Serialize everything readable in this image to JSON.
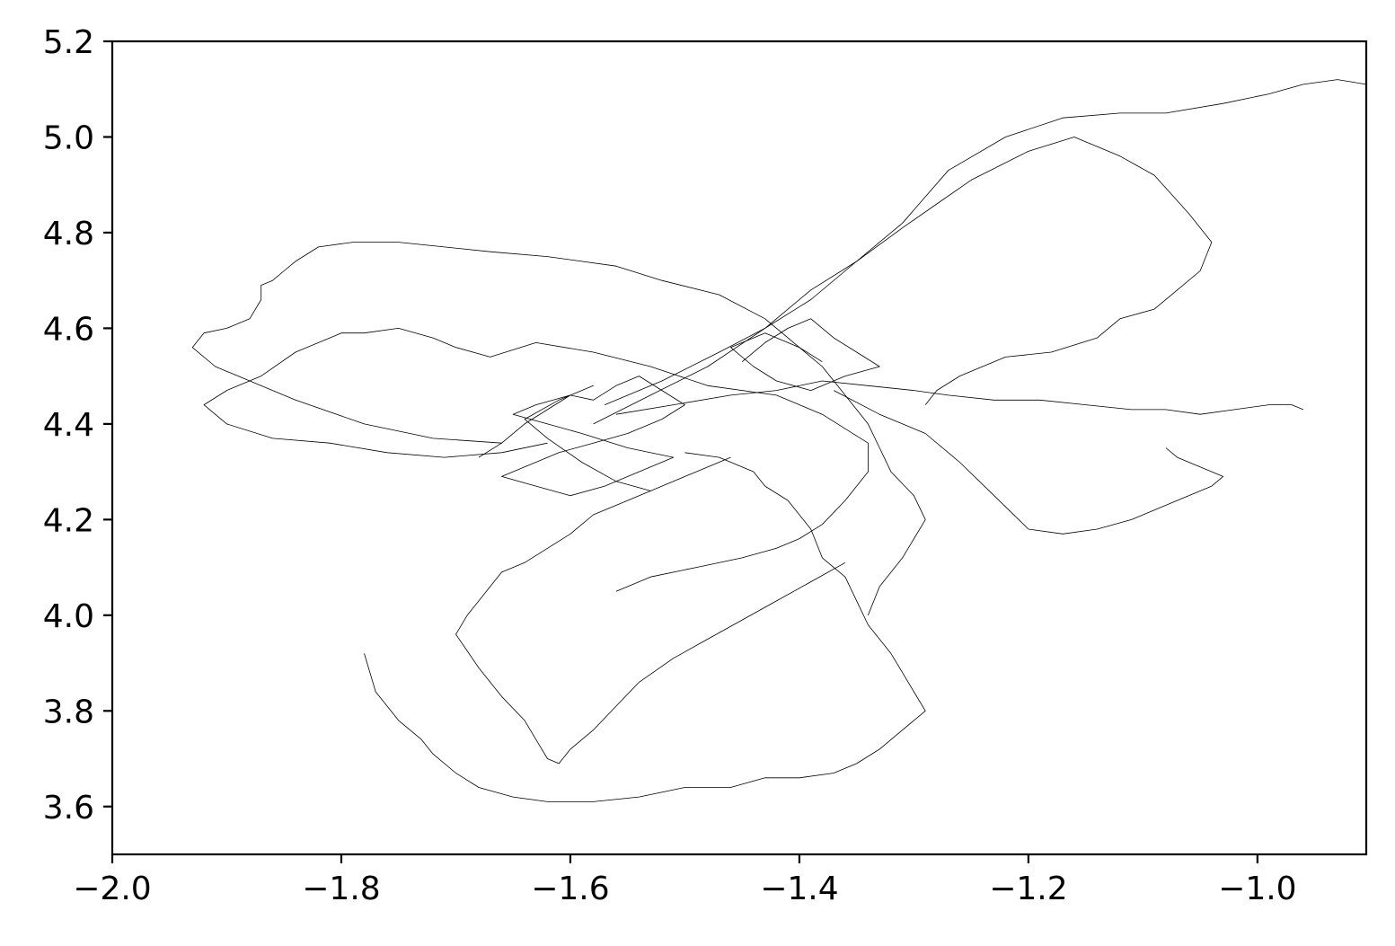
{
  "chart_data": {
    "type": "line",
    "title": "",
    "xlabel": "",
    "ylabel": "",
    "xlim": [
      -2.0,
      -0.905
    ],
    "ylim": [
      3.5,
      5.2
    ],
    "grid": false,
    "x_ticks": [
      -2.0,
      -1.8,
      -1.6,
      -1.4,
      -1.2,
      -1.0
    ],
    "x_tick_labels": [
      "−2.0",
      "−1.8",
      "−1.6",
      "−1.4",
      "−1.2",
      "−1.0"
    ],
    "y_ticks": [
      3.6,
      3.8,
      4.0,
      4.2,
      4.4,
      4.6,
      4.8,
      5.0,
      5.2
    ],
    "y_tick_labels": [
      "3.6",
      "3.8",
      "4.0",
      "4.2",
      "4.4",
      "4.6",
      "4.8",
      "5.0",
      "5.2"
    ],
    "line_color": "#000000",
    "series": [
      {
        "x": [
          -1.57,
          -1.52,
          -1.47,
          -1.43,
          -1.39,
          -1.36,
          -1.31,
          -1.27,
          -1.22,
          -1.17,
          -1.12,
          -1.08,
          -1.03,
          -0.99,
          -0.96,
          -0.93,
          -0.905
        ],
        "y": [
          4.44,
          4.49,
          4.55,
          4.6,
          4.66,
          4.72,
          4.82,
          4.93,
          5.0,
          5.04,
          5.05,
          5.05,
          5.07,
          5.09,
          5.11,
          5.12,
          5.11
        ]
      },
      {
        "x": [
          -1.58,
          -1.53,
          -1.48,
          -1.43,
          -1.39,
          -1.35,
          -1.31,
          -1.28,
          -1.25,
          -1.2,
          -1.16,
          -1.12,
          -1.09,
          -1.06,
          -1.04,
          -1.05,
          -1.07,
          -1.09,
          -1.12,
          -1.14,
          -1.18,
          -1.22,
          -1.26,
          -1.28,
          -1.29
        ],
        "y": [
          4.4,
          4.46,
          4.52,
          4.6,
          4.68,
          4.74,
          4.81,
          4.86,
          4.91,
          4.97,
          5.0,
          4.96,
          4.92,
          4.84,
          4.78,
          4.72,
          4.68,
          4.64,
          4.62,
          4.58,
          4.55,
          4.54,
          4.5,
          4.47,
          4.44
        ]
      },
      {
        "x": [
          -1.56,
          -1.51,
          -1.46,
          -1.42,
          -1.38,
          -1.34,
          -1.3,
          -1.27,
          -1.23,
          -1.19,
          -1.15,
          -1.11,
          -1.08,
          -1.05,
          -1.02,
          -0.99,
          -0.97,
          -0.96
        ],
        "y": [
          4.42,
          4.44,
          4.46,
          4.47,
          4.49,
          4.48,
          4.47,
          4.46,
          4.45,
          4.45,
          4.44,
          4.43,
          4.43,
          4.42,
          4.43,
          4.44,
          4.44,
          4.43
        ]
      },
      {
        "x": [
          -1.37,
          -1.33,
          -1.29,
          -1.26,
          -1.23,
          -1.2,
          -1.17,
          -1.14,
          -1.11,
          -1.08,
          -1.06,
          -1.04,
          -1.03,
          -1.05,
          -1.07,
          -1.08
        ],
        "y": [
          4.47,
          4.42,
          4.38,
          4.32,
          4.25,
          4.18,
          4.17,
          4.18,
          4.2,
          4.23,
          4.25,
          4.27,
          4.29,
          4.31,
          4.33,
          4.35
        ]
      },
      {
        "x": [
          -1.66,
          -1.72,
          -1.78,
          -1.84,
          -1.88,
          -1.91,
          -1.93,
          -1.92,
          -1.9,
          -1.88,
          -1.87,
          -1.87,
          -1.86,
          -1.85,
          -1.84,
          -1.82,
          -1.79,
          -1.75,
          -1.71,
          -1.67,
          -1.62,
          -1.56,
          -1.52,
          -1.47,
          -1.43,
          -1.41,
          -1.38,
          -1.36,
          -1.34,
          -1.33,
          -1.32,
          -1.3,
          -1.29,
          -1.31,
          -1.33,
          -1.34
        ],
        "y": [
          4.36,
          4.37,
          4.4,
          4.45,
          4.49,
          4.52,
          4.56,
          4.59,
          4.6,
          4.62,
          4.66,
          4.69,
          4.7,
          4.72,
          4.74,
          4.77,
          4.78,
          4.78,
          4.77,
          4.76,
          4.75,
          4.73,
          4.7,
          4.67,
          4.62,
          4.58,
          4.52,
          4.46,
          4.4,
          4.35,
          4.3,
          4.25,
          4.2,
          4.12,
          4.06,
          4.0
        ]
      },
      {
        "x": [
          -1.62,
          -1.66,
          -1.71,
          -1.76,
          -1.81,
          -1.86,
          -1.9,
          -1.92,
          -1.9,
          -1.87,
          -1.84,
          -1.81,
          -1.8,
          -1.78,
          -1.75,
          -1.72,
          -1.7,
          -1.67,
          -1.63,
          -1.58,
          -1.53,
          -1.48,
          -1.42,
          -1.38,
          -1.34,
          -1.34,
          -1.36,
          -1.38,
          -1.4,
          -1.42,
          -1.45,
          -1.49,
          -1.53,
          -1.56
        ],
        "y": [
          4.36,
          4.34,
          4.33,
          4.34,
          4.36,
          4.37,
          4.4,
          4.44,
          4.47,
          4.5,
          4.55,
          4.58,
          4.59,
          4.59,
          4.6,
          4.58,
          4.56,
          4.54,
          4.57,
          4.55,
          4.52,
          4.48,
          4.46,
          4.42,
          4.36,
          4.3,
          4.24,
          4.19,
          4.16,
          4.14,
          4.12,
          4.1,
          4.08,
          4.05
        ]
      },
      {
        "x": [
          -1.5,
          -1.47,
          -1.44,
          -1.43,
          -1.41,
          -1.39,
          -1.38,
          -1.36,
          -1.35,
          -1.34,
          -1.32,
          -1.31,
          -1.3,
          -1.29,
          -1.31,
          -1.33,
          -1.35,
          -1.37,
          -1.4,
          -1.43,
          -1.46,
          -1.5,
          -1.54,
          -1.58,
          -1.62,
          -1.65,
          -1.68,
          -1.7,
          -1.72,
          -1.73,
          -1.75,
          -1.77,
          -1.78
        ],
        "y": [
          4.34,
          4.33,
          4.3,
          4.27,
          4.24,
          4.18,
          4.12,
          4.08,
          4.03,
          3.98,
          3.92,
          3.88,
          3.84,
          3.8,
          3.76,
          3.72,
          3.69,
          3.67,
          3.66,
          3.66,
          3.64,
          3.64,
          3.62,
          3.61,
          3.61,
          3.62,
          3.64,
          3.67,
          3.71,
          3.74,
          3.78,
          3.84,
          3.92
        ]
      },
      {
        "x": [
          -1.36,
          -1.39,
          -1.42,
          -1.45,
          -1.48,
          -1.51,
          -1.54,
          -1.56,
          -1.58,
          -1.6,
          -1.61,
          -1.62,
          -1.63,
          -1.64,
          -1.66,
          -1.68,
          -1.7,
          -1.69,
          -1.68,
          -1.67,
          -1.66,
          -1.64,
          -1.62,
          -1.6,
          -1.58,
          -1.55,
          -1.52,
          -1.49,
          -1.46
        ],
        "y": [
          4.11,
          4.07,
          4.03,
          3.99,
          3.95,
          3.91,
          3.86,
          3.81,
          3.76,
          3.72,
          3.69,
          3.7,
          3.74,
          3.78,
          3.83,
          3.89,
          3.96,
          4.0,
          4.03,
          4.06,
          4.09,
          4.11,
          4.14,
          4.17,
          4.21,
          4.24,
          4.27,
          4.3,
          4.33
        ]
      },
      {
        "x": [
          -1.68,
          -1.66,
          -1.64,
          -1.62,
          -1.6,
          -1.58,
          -1.56,
          -1.54,
          -1.52,
          -1.5,
          -1.52,
          -1.55,
          -1.58,
          -1.61,
          -1.64,
          -1.66,
          -1.63,
          -1.6,
          -1.57,
          -1.54,
          -1.51,
          -1.55,
          -1.59,
          -1.62,
          -1.65,
          -1.63,
          -1.6,
          -1.58,
          -1.61,
          -1.64,
          -1.62,
          -1.59,
          -1.56,
          -1.53
        ],
        "y": [
          4.33,
          4.36,
          4.4,
          4.43,
          4.46,
          4.45,
          4.48,
          4.5,
          4.47,
          4.44,
          4.41,
          4.38,
          4.36,
          4.34,
          4.31,
          4.29,
          4.27,
          4.25,
          4.27,
          4.3,
          4.33,
          4.35,
          4.38,
          4.4,
          4.42,
          4.44,
          4.46,
          4.48,
          4.45,
          4.41,
          4.37,
          4.32,
          4.28,
          4.26
        ]
      },
      {
        "x": [
          -1.45,
          -1.43,
          -1.41,
          -1.39,
          -1.37,
          -1.35,
          -1.33,
          -1.36,
          -1.39,
          -1.42,
          -1.44,
          -1.46,
          -1.43,
          -1.4,
          -1.38
        ],
        "y": [
          4.53,
          4.57,
          4.6,
          4.62,
          4.58,
          4.55,
          4.52,
          4.5,
          4.47,
          4.49,
          4.52,
          4.56,
          4.59,
          4.56,
          4.53
        ]
      }
    ]
  }
}
